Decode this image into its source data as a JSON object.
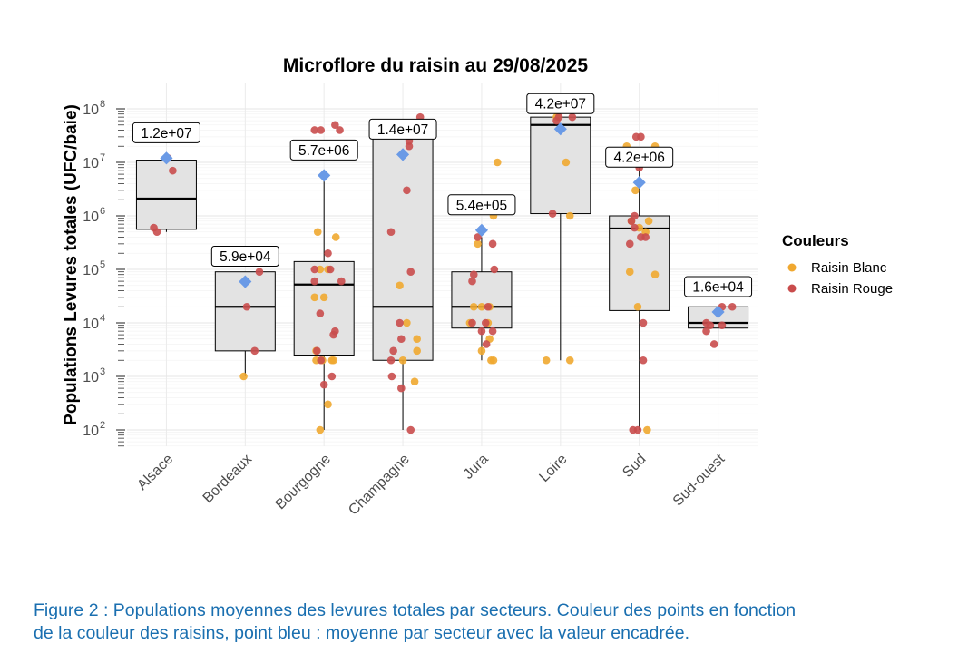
{
  "chart_data": {
    "type": "boxplot",
    "title": "Microflore du raisin au 29/08/2025",
    "ylabel": "Populations Levures totales (UFC/baie)",
    "xlabel": "",
    "y_scale": "log10",
    "ylim": [
      50,
      150000000
    ],
    "y_ticks": [
      {
        "value": 100,
        "base": "10",
        "exp": "2"
      },
      {
        "value": 1000,
        "base": "10",
        "exp": "3"
      },
      {
        "value": 10000,
        "base": "10",
        "exp": "4"
      },
      {
        "value": 100000,
        "base": "10",
        "exp": "5"
      },
      {
        "value": 1000000,
        "base": "10",
        "exp": "6"
      },
      {
        "value": 10000000,
        "base": "10",
        "exp": "7"
      },
      {
        "value": 100000000,
        "base": "10",
        "exp": "8"
      }
    ],
    "grid": true,
    "legend": {
      "title": "Couleurs",
      "position": "right",
      "entries": [
        {
          "name": "Raisin Blanc",
          "color": "#f0a830"
        },
        {
          "name": "Raisin Rouge",
          "color": "#c94c4c"
        }
      ]
    },
    "mean_color": "#6a9ae6",
    "box_fill": "#e3e3e3",
    "categories": [
      "Alsace",
      "Bordeaux",
      "Bourgogne",
      "Champagne",
      "Jura",
      "Loire",
      "Sud",
      "Sud-ouest"
    ],
    "groups": [
      {
        "name": "Alsace",
        "box": {
          "min": 500000,
          "q1": 560000,
          "median": 2100000,
          "q3": 11000000,
          "max": 11000000
        },
        "mean": 12000000,
        "mean_label": "1.2e+07",
        "blanc": [],
        "rouge": [
          [
            -0.16,
            600000
          ],
          [
            -0.12,
            500000
          ],
          [
            0.08,
            7000000
          ],
          [
            0.02,
            12000000
          ]
        ]
      },
      {
        "name": "Bordeaux",
        "box": {
          "min": 1000,
          "q1": 3000,
          "median": 20000,
          "q3": 90000,
          "max": 90000
        },
        "mean": 59000,
        "mean_label": "5.9e+04",
        "blanc": [
          [
            -0.02,
            1000
          ]
        ],
        "rouge": [
          [
            0.18,
            90000
          ],
          [
            0.02,
            20000
          ],
          [
            0.12,
            3000
          ]
        ]
      },
      {
        "name": "Bourgogne",
        "box": {
          "min": 100,
          "q1": 2500,
          "median": 52000,
          "q3": 140000,
          "max": 5700000
        },
        "mean": 5700000,
        "mean_label": "5.7e+06",
        "blanc": [
          [
            -0.08,
            500000
          ],
          [
            0.15,
            400000
          ],
          [
            -0.05,
            100000
          ],
          [
            0.05,
            100000
          ],
          [
            -0.12,
            30000
          ],
          [
            0.0,
            30000
          ],
          [
            -0.1,
            3000
          ],
          [
            -0.02,
            2000
          ],
          [
            0.1,
            2000
          ],
          [
            -0.1,
            2000
          ],
          [
            0.05,
            300
          ],
          [
            -0.05,
            100
          ],
          [
            0.12,
            2000
          ]
        ],
        "rouge": [
          [
            0.14,
            50000000
          ],
          [
            0.2,
            40000000
          ],
          [
            -0.12,
            40000000
          ],
          [
            -0.04,
            40000000
          ],
          [
            0.05,
            200000
          ],
          [
            -0.12,
            100000
          ],
          [
            0.08,
            100000
          ],
          [
            0.22,
            60000
          ],
          [
            -0.12,
            60000
          ],
          [
            0.12,
            6000
          ],
          [
            0.14,
            7000
          ],
          [
            -0.05,
            15000
          ],
          [
            -0.09,
            3000
          ],
          [
            0.1,
            1000
          ],
          [
            0.0,
            700
          ],
          [
            -0.04,
            2000
          ]
        ]
      },
      {
        "name": "Champagne",
        "box": {
          "min": 100,
          "q1": 2000,
          "median": 20000,
          "q3": 30000000,
          "max": 30000000
        },
        "mean": 14000000,
        "mean_label": "1.4e+07",
        "blanc": [
          [
            -0.04,
            50000
          ],
          [
            0.18,
            5000
          ],
          [
            0.18,
            3000
          ],
          [
            0.0,
            2000
          ],
          [
            0.15,
            800
          ],
          [
            0.05,
            10000
          ]
        ],
        "rouge": [
          [
            0.22,
            70000000
          ],
          [
            0.08,
            25000000
          ],
          [
            0.08,
            20000000
          ],
          [
            0.05,
            3000000
          ],
          [
            -0.15,
            500000
          ],
          [
            0.1,
            90000
          ],
          [
            -0.04,
            10000
          ],
          [
            -0.02,
            5000
          ],
          [
            -0.12,
            3000
          ],
          [
            -0.15,
            2000
          ],
          [
            -0.14,
            1000
          ],
          [
            -0.02,
            600
          ],
          [
            0.1,
            100
          ]
        ]
      },
      {
        "name": "Jura",
        "box": {
          "min": 2000,
          "q1": 8000,
          "median": 20000,
          "q3": 90000,
          "max": 400000
        },
        "mean": 540000,
        "mean_label": "5.4e+05",
        "blanc": [
          [
            0.2,
            10000000
          ],
          [
            0.15,
            1000000
          ],
          [
            -0.05,
            300000
          ],
          [
            0.0,
            20000
          ],
          [
            0.1,
            20000
          ],
          [
            0.08,
            10000
          ],
          [
            -0.15,
            10000
          ],
          [
            0.1,
            5000
          ],
          [
            0.0,
            3000
          ],
          [
            0.15,
            2000
          ],
          [
            0.12,
            2000
          ],
          [
            -0.1,
            20000
          ]
        ],
        "rouge": [
          [
            0.14,
            300000
          ],
          [
            -0.05,
            400000
          ],
          [
            0.16,
            100000
          ],
          [
            -0.1,
            80000
          ],
          [
            -0.12,
            60000
          ],
          [
            0.08,
            20000
          ],
          [
            0.05,
            10000
          ],
          [
            -0.12,
            10000
          ],
          [
            0.14,
            7000
          ],
          [
            0.0,
            7000
          ],
          [
            0.06,
            4000
          ]
        ]
      },
      {
        "name": "Loire",
        "box": {
          "min": 2000,
          "q1": 1100000,
          "median": 50000000,
          "q3": 70000000,
          "max": 70000000
        },
        "mean": 42000000,
        "mean_label": "4.2e+07",
        "blanc": [
          [
            -0.18,
            2000
          ],
          [
            0.12,
            2000
          ],
          [
            0.12,
            1000000
          ],
          [
            0.07,
            10000000
          ],
          [
            -0.05,
            70000000
          ]
        ],
        "rouge": [
          [
            0.15,
            70000000
          ],
          [
            -0.02,
            70000000
          ],
          [
            -0.05,
            60000000
          ],
          [
            -0.1,
            1100000
          ]
        ]
      },
      {
        "name": "Sud",
        "box": {
          "min": 100,
          "q1": 17000,
          "median": 580000,
          "q3": 1000000,
          "max": 8000000
        },
        "mean": 4200000,
        "mean_label": "4.2e+06",
        "blanc": [
          [
            -0.16,
            20000000
          ],
          [
            0.2,
            20000000
          ],
          [
            -0.02,
            10000000
          ],
          [
            -0.05,
            3000000
          ],
          [
            0.08,
            500000
          ],
          [
            -0.1,
            800000
          ],
          [
            0.12,
            800000
          ],
          [
            0.0,
            600000
          ],
          [
            0.2,
            80000
          ],
          [
            -0.12,
            90000
          ],
          [
            -0.02,
            20000
          ],
          [
            0.1,
            100
          ]
        ],
        "rouge": [
          [
            -0.04,
            30000000
          ],
          [
            0.02,
            30000000
          ],
          [
            0.0,
            8000000
          ],
          [
            -0.1,
            800000
          ],
          [
            -0.06,
            1000000
          ],
          [
            0.08,
            400000
          ],
          [
            0.02,
            400000
          ],
          [
            -0.12,
            300000
          ],
          [
            -0.06,
            600000
          ],
          [
            0.05,
            10000
          ],
          [
            0.05,
            2000
          ],
          [
            -0.08,
            100
          ],
          [
            -0.02,
            100
          ]
        ]
      },
      {
        "name": "Sud-ouest",
        "box": {
          "min": 4000,
          "q1": 8000,
          "median": 10000,
          "q3": 20000,
          "max": 20000
        },
        "mean": 16000,
        "mean_label": "1.6e+04",
        "blanc": [],
        "rouge": [
          [
            0.05,
            20000
          ],
          [
            0.18,
            20000
          ],
          [
            -0.15,
            10000
          ],
          [
            -0.15,
            7000
          ],
          [
            -0.05,
            4000
          ],
          [
            0.05,
            9000
          ],
          [
            -0.1,
            9000
          ]
        ]
      }
    ]
  },
  "caption": {
    "line1": "Figure 2 : Populations moyennes des levures totales par secteurs. Couleur des points en fonction",
    "line2": "de la couleur des raisins, point bleu : moyenne par secteur avec la valeur encadrée."
  }
}
